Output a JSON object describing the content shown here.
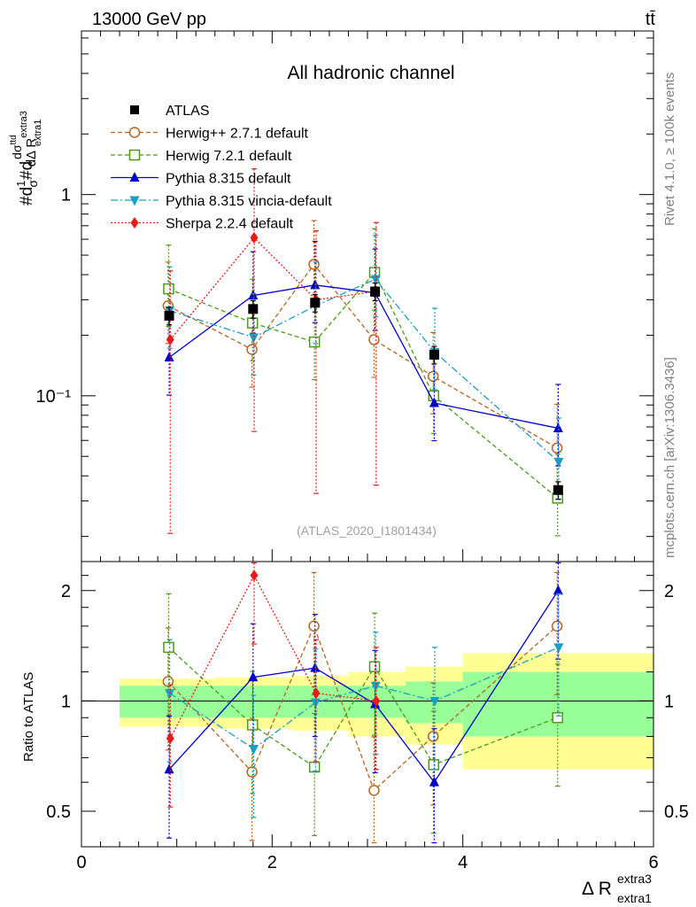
{
  "header": {
    "energy": "13000 GeV pp",
    "process": "tt̄",
    "rivet": "Rivet 4.1.0, ≥ 100k events",
    "mcplots": "mcplots.cern.ch [arXiv:1306.3436]",
    "analysis": "(ATLAS_2020_I1801434)"
  },
  "chart_data": {
    "type": "line",
    "title": "All hadronic channel",
    "xlabel": "Δ R",
    "xlabel_sup": "extra3",
    "xlabel_sub": "extra1",
    "ylabel": "#d 1/σ #d dσ^ttd / dΔ R^extra3_extra1",
    "ratio_ylabel": "Ratio to ATLAS",
    "xlim": [
      0,
      6
    ],
    "ylim": [
      0.015,
      6.5
    ],
    "ratio_ylim": [
      0.4,
      2.4
    ],
    "x_ticks": [
      "0",
      "2",
      "4",
      "6"
    ],
    "y_ticks": [
      "1",
      "10⁻¹"
    ],
    "ratio_ticks": [
      "2",
      "1",
      "0.5"
    ],
    "x": [
      0.92,
      1.8,
      2.45,
      3.08,
      3.7,
      5.0
    ],
    "data": {
      "name": "ATLAS",
      "values": [
        0.25,
        0.27,
        0.29,
        0.33,
        0.16,
        0.034
      ],
      "bins": [
        [
          0.4,
          1.4
        ],
        [
          1.4,
          2.2
        ],
        [
          2.2,
          2.8
        ],
        [
          2.8,
          3.4
        ],
        [
          3.4,
          4.0
        ],
        [
          4.0,
          6.0
        ]
      ],
      "band_stat": [
        0.1,
        0.1,
        0.1,
        0.1,
        0.13,
        0.2
      ],
      "band_total": [
        0.15,
        0.16,
        0.17,
        0.2,
        0.24,
        0.35
      ]
    },
    "series": [
      {
        "name": "Herwig++ 2.7.1 default",
        "color": "#b5651d",
        "values": [
          0.28,
          0.17,
          0.45,
          0.19,
          0.125,
          0.055
        ],
        "ratio": [
          1.13,
          0.64,
          1.6,
          0.57,
          0.8,
          1.6
        ],
        "marker": "open-circle",
        "dash": "5,3"
      },
      {
        "name": "Herwig 7.2.1 default",
        "color": "#4c9a1a",
        "values": [
          0.34,
          0.23,
          0.185,
          0.41,
          0.1,
          0.031
        ],
        "ratio": [
          1.4,
          0.86,
          0.66,
          1.24,
          0.67,
          0.9
        ],
        "marker": "open-square",
        "dash": "5,3"
      },
      {
        "name": "Pythia 8.315 default",
        "color": "#0000cc",
        "values": [
          0.155,
          0.315,
          0.355,
          0.325,
          0.092,
          0.069
        ],
        "ratio": [
          0.65,
          1.16,
          1.23,
          0.98,
          0.6,
          2.0
        ],
        "marker": "filled-triangle-up",
        "dash": ""
      },
      {
        "name": "Pythia 8.315 vincia-default",
        "color": "#1a9ec2",
        "values": [
          0.265,
          0.195,
          0.28,
          0.38,
          0.165,
          0.047
        ],
        "ratio": [
          1.05,
          0.74,
          0.99,
          1.1,
          1.0,
          1.4
        ],
        "marker": "filled-triangle-down",
        "dash": "8,3,2,3"
      },
      {
        "name": "Sherpa 2.2.4 default",
        "color": "#e81a1a",
        "values": [
          0.19,
          0.61,
          0.3,
          0.33,
          null,
          null
        ],
        "ratio": [
          0.79,
          2.2,
          1.05,
          1.0,
          null,
          null
        ],
        "marker": "filled-diamond",
        "dash": "2,2"
      }
    ]
  }
}
